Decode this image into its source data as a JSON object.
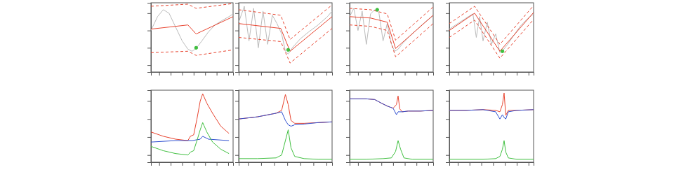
{
  "chart_data": [
    {
      "type": "line",
      "xlim": [
        0,
        100
      ],
      "ylim": [
        0,
        100
      ],
      "xticks": [
        10,
        24,
        38,
        52,
        66,
        80,
        94
      ],
      "yticks": [
        10,
        35,
        60,
        85
      ],
      "tick_labels": false,
      "series": [
        {
          "color": "#bbbbbb",
          "line_style": "solid",
          "x": [
            0,
            8,
            15,
            22,
            30,
            38,
            45,
            50,
            55,
            62,
            70,
            78,
            86,
            95,
            100
          ],
          "values": [
            60,
            80,
            90,
            85,
            65,
            45,
            33,
            30,
            34,
            45,
            58,
            68,
            74,
            80,
            84
          ]
        },
        {
          "color": "#e8432e",
          "line_style": "solid",
          "x": [
            0,
            45,
            55,
            100
          ],
          "values": [
            62,
            68,
            55,
            80
          ]
        },
        {
          "color": "#e8432e",
          "line_style": "dashed",
          "x": [
            0,
            45,
            55,
            100
          ],
          "values": [
            95,
            98,
            92,
            99
          ]
        },
        {
          "color": "#e8432e",
          "line_style": "dashed",
          "x": [
            0,
            45,
            55,
            100
          ],
          "values": [
            28,
            30,
            24,
            32
          ]
        },
        {
          "type": "scatter",
          "color": "#3fbf3f",
          "marker": "circle",
          "x": [
            55
          ],
          "values": [
            35
          ]
        }
      ]
    },
    {
      "type": "line",
      "xlim": [
        0,
        100
      ],
      "ylim": [
        0,
        100
      ],
      "xticks": [
        10,
        24,
        38,
        52,
        66,
        80,
        94
      ],
      "yticks": [
        10,
        35,
        60,
        85
      ],
      "tick_labels": false,
      "series": [
        {
          "color": "#bbbbbb",
          "line_style": "solid",
          "x": [
            0,
            6,
            11,
            16,
            21,
            26,
            31,
            36,
            41,
            46,
            50,
            53,
            58,
            66,
            75,
            85,
            95,
            100
          ],
          "values": [
            72,
            95,
            45,
            92,
            35,
            88,
            40,
            82,
            70,
            55,
            30,
            26,
            36,
            48,
            58,
            68,
            80,
            88
          ]
        },
        {
          "color": "#e8432e",
          "line_style": "solid",
          "x": [
            0,
            45,
            55,
            100
          ],
          "values": [
            70,
            63,
            30,
            80
          ]
        },
        {
          "color": "#e8432e",
          "line_style": "dashed",
          "x": [
            0,
            45,
            55,
            100
          ],
          "values": [
            90,
            82,
            47,
            97
          ]
        },
        {
          "color": "#e8432e",
          "line_style": "dashed",
          "x": [
            0,
            45,
            55,
            100
          ],
          "values": [
            50,
            44,
            13,
            63
          ]
        },
        {
          "type": "scatter",
          "color": "#3fbf3f",
          "marker": "circle",
          "x": [
            53
          ],
          "values": [
            32
          ]
        }
      ]
    },
    {
      "type": "line",
      "xlim": [
        0,
        100
      ],
      "ylim": [
        0,
        100
      ],
      "xticks": [
        10,
        24,
        38,
        52,
        66,
        80,
        94
      ],
      "yticks": [
        10,
        35,
        60,
        85
      ],
      "tick_labels": false,
      "series": [
        {
          "color": "#bbbbbb",
          "line_style": "solid",
          "x": [
            0,
            5,
            10,
            15,
            20,
            25,
            30,
            35,
            40,
            45,
            50,
            54,
            58,
            64,
            72,
            82,
            92,
            100
          ],
          "values": [
            80,
            92,
            60,
            88,
            40,
            84,
            90,
            86,
            45,
            70,
            40,
            30,
            33,
            42,
            52,
            63,
            74,
            82
          ]
        },
        {
          "color": "#e8432e",
          "line_style": "solid",
          "x": [
            0,
            25,
            45,
            55,
            100
          ],
          "values": [
            80,
            78,
            72,
            34,
            82
          ]
        },
        {
          "color": "#e8432e",
          "line_style": "dashed",
          "x": [
            0,
            25,
            45,
            55,
            100
          ],
          "values": [
            92,
            90,
            84,
            46,
            94
          ]
        },
        {
          "color": "#e8432e",
          "line_style": "dashed",
          "x": [
            0,
            25,
            45,
            55,
            100
          ],
          "values": [
            68,
            66,
            60,
            22,
            70
          ]
        },
        {
          "type": "scatter",
          "color": "#3fbf3f",
          "marker": "circle",
          "x": [
            33
          ],
          "values": [
            90
          ]
        }
      ]
    },
    {
      "type": "line",
      "xlim": [
        0,
        100
      ],
      "ylim": [
        0,
        100
      ],
      "xticks": [
        10,
        24,
        38,
        52,
        66,
        80,
        94
      ],
      "yticks": [
        10,
        35,
        60,
        85
      ],
      "tick_labels": false,
      "series": [
        {
          "color": "#bbbbbb",
          "line_style": "solid",
          "x": [
            0,
            10,
            20,
            28,
            32,
            36,
            40,
            45,
            50,
            55,
            60,
            64,
            68,
            76,
            84,
            92,
            100
          ],
          "values": [
            62,
            70,
            78,
            84,
            50,
            80,
            45,
            72,
            40,
            55,
            28,
            32,
            38,
            52,
            66,
            76,
            84
          ]
        },
        {
          "color": "#e8432e",
          "line_style": "solid",
          "x": [
            0,
            30,
            60,
            100
          ],
          "values": [
            60,
            85,
            30,
            86
          ]
        },
        {
          "color": "#e8432e",
          "line_style": "dashed",
          "x": [
            0,
            30,
            60,
            100
          ],
          "values": [
            70,
            95,
            40,
            96
          ]
        },
        {
          "color": "#e8432e",
          "line_style": "dashed",
          "x": [
            0,
            30,
            60,
            100
          ],
          "values": [
            50,
            75,
            20,
            76
          ]
        },
        {
          "type": "scatter",
          "color": "#3fbf3f",
          "marker": "circle",
          "x": [
            63
          ],
          "values": [
            30
          ]
        }
      ]
    },
    {
      "type": "line",
      "xlim": [
        0,
        100
      ],
      "ylim": [
        0,
        100
      ],
      "xticks": [
        10,
        24,
        38,
        52,
        66,
        80,
        94
      ],
      "yticks": [
        10,
        35,
        60,
        85
      ],
      "tick_labels": false,
      "series": [
        {
          "color": "#e8432e",
          "line_style": "solid",
          "x": [
            0,
            15,
            30,
            45,
            48,
            52,
            56,
            60,
            63,
            68,
            75,
            85,
            95
          ],
          "values": [
            42,
            36,
            32,
            30,
            36,
            38,
            60,
            85,
            95,
            82,
            68,
            50,
            40
          ]
        },
        {
          "color": "#3050d0",
          "line_style": "solid",
          "x": [
            0,
            30,
            50,
            60,
            63,
            70,
            95
          ],
          "values": [
            28,
            30,
            30,
            32,
            36,
            32,
            30
          ]
        },
        {
          "color": "#3fbf3f",
          "line_style": "solid",
          "x": [
            0,
            15,
            30,
            45,
            48,
            52,
            56,
            60,
            63,
            68,
            75,
            85,
            95
          ],
          "values": [
            22,
            16,
            12,
            10,
            14,
            16,
            30,
            45,
            55,
            42,
            28,
            18,
            12
          ]
        }
      ]
    },
    {
      "type": "line",
      "xlim": [
        0,
        100
      ],
      "ylim": [
        0,
        100
      ],
      "xticks": [
        10,
        24,
        38,
        52,
        66,
        80,
        94
      ],
      "yticks": [
        10,
        35,
        60,
        85
      ],
      "tick_labels": false,
      "series": [
        {
          "color": "#e8432e",
          "line_style": "solid",
          "x": [
            0,
            20,
            40,
            46,
            50,
            53,
            56,
            60,
            70,
            85,
            100
          ],
          "values": [
            60,
            63,
            68,
            72,
            94,
            80,
            58,
            54,
            54,
            55,
            56
          ]
        },
        {
          "color": "#3050d0",
          "line_style": "solid",
          "x": [
            0,
            20,
            40,
            46,
            50,
            53,
            56,
            60,
            70,
            85,
            100
          ],
          "values": [
            60,
            63,
            68,
            70,
            58,
            52,
            50,
            52,
            53,
            55,
            56
          ]
        },
        {
          "color": "#3fbf3f",
          "line_style": "solid",
          "x": [
            0,
            20,
            40,
            46,
            50,
            53,
            56,
            60,
            70,
            85,
            100
          ],
          "values": [
            5,
            5,
            6,
            10,
            30,
            45,
            20,
            8,
            5,
            4,
            4
          ]
        }
      ]
    },
    {
      "type": "line",
      "xlim": [
        0,
        100
      ],
      "ylim": [
        0,
        100
      ],
      "xticks": [
        10,
        24,
        38,
        52,
        66,
        80,
        94
      ],
      "yticks": [
        10,
        35,
        60,
        85
      ],
      "tick_labels": false,
      "series": [
        {
          "color": "#e8432e",
          "line_style": "solid",
          "x": [
            0,
            20,
            30,
            38,
            45,
            52,
            56,
            58,
            60,
            63,
            70,
            85,
            100
          ],
          "values": [
            88,
            88,
            87,
            82,
            78,
            75,
            80,
            92,
            74,
            70,
            71,
            71,
            72
          ]
        },
        {
          "color": "#3050d0",
          "line_style": "solid",
          "x": [
            0,
            20,
            30,
            38,
            45,
            52,
            56,
            58,
            60,
            63,
            70,
            85,
            100
          ],
          "values": [
            88,
            88,
            87,
            82,
            78,
            75,
            66,
            70,
            70,
            70,
            71,
            71,
            72
          ]
        },
        {
          "color": "#3fbf3f",
          "line_style": "solid",
          "x": [
            0,
            20,
            40,
            50,
            55,
            58,
            61,
            65,
            75,
            100
          ],
          "values": [
            4,
            4,
            5,
            6,
            15,
            30,
            18,
            6,
            4,
            4
          ]
        }
      ]
    },
    {
      "type": "line",
      "xlim": [
        0,
        100
      ],
      "ylim": [
        0,
        100
      ],
      "xticks": [
        10,
        24,
        38,
        52,
        66,
        80,
        94
      ],
      "yticks": [
        10,
        35,
        60,
        85
      ],
      "tick_labels": false,
      "series": [
        {
          "color": "#e8432e",
          "line_style": "solid",
          "x": [
            0,
            20,
            40,
            55,
            60,
            63,
            65,
            67,
            70,
            80,
            100
          ],
          "values": [
            72,
            72,
            73,
            72,
            70,
            80,
            96,
            65,
            72,
            72,
            73
          ]
        },
        {
          "color": "#3050d0",
          "line_style": "solid",
          "x": [
            0,
            20,
            40,
            55,
            58,
            60,
            63,
            65,
            67,
            70,
            80,
            100
          ],
          "values": [
            72,
            72,
            73,
            70,
            64,
            60,
            66,
            62,
            60,
            70,
            72,
            73
          ]
        },
        {
          "color": "#3fbf3f",
          "line_style": "solid",
          "x": [
            0,
            20,
            40,
            55,
            60,
            63,
            65,
            67,
            70,
            80,
            100
          ],
          "values": [
            4,
            4,
            4,
            5,
            8,
            18,
            30,
            14,
            6,
            4,
            4
          ]
        }
      ]
    }
  ]
}
